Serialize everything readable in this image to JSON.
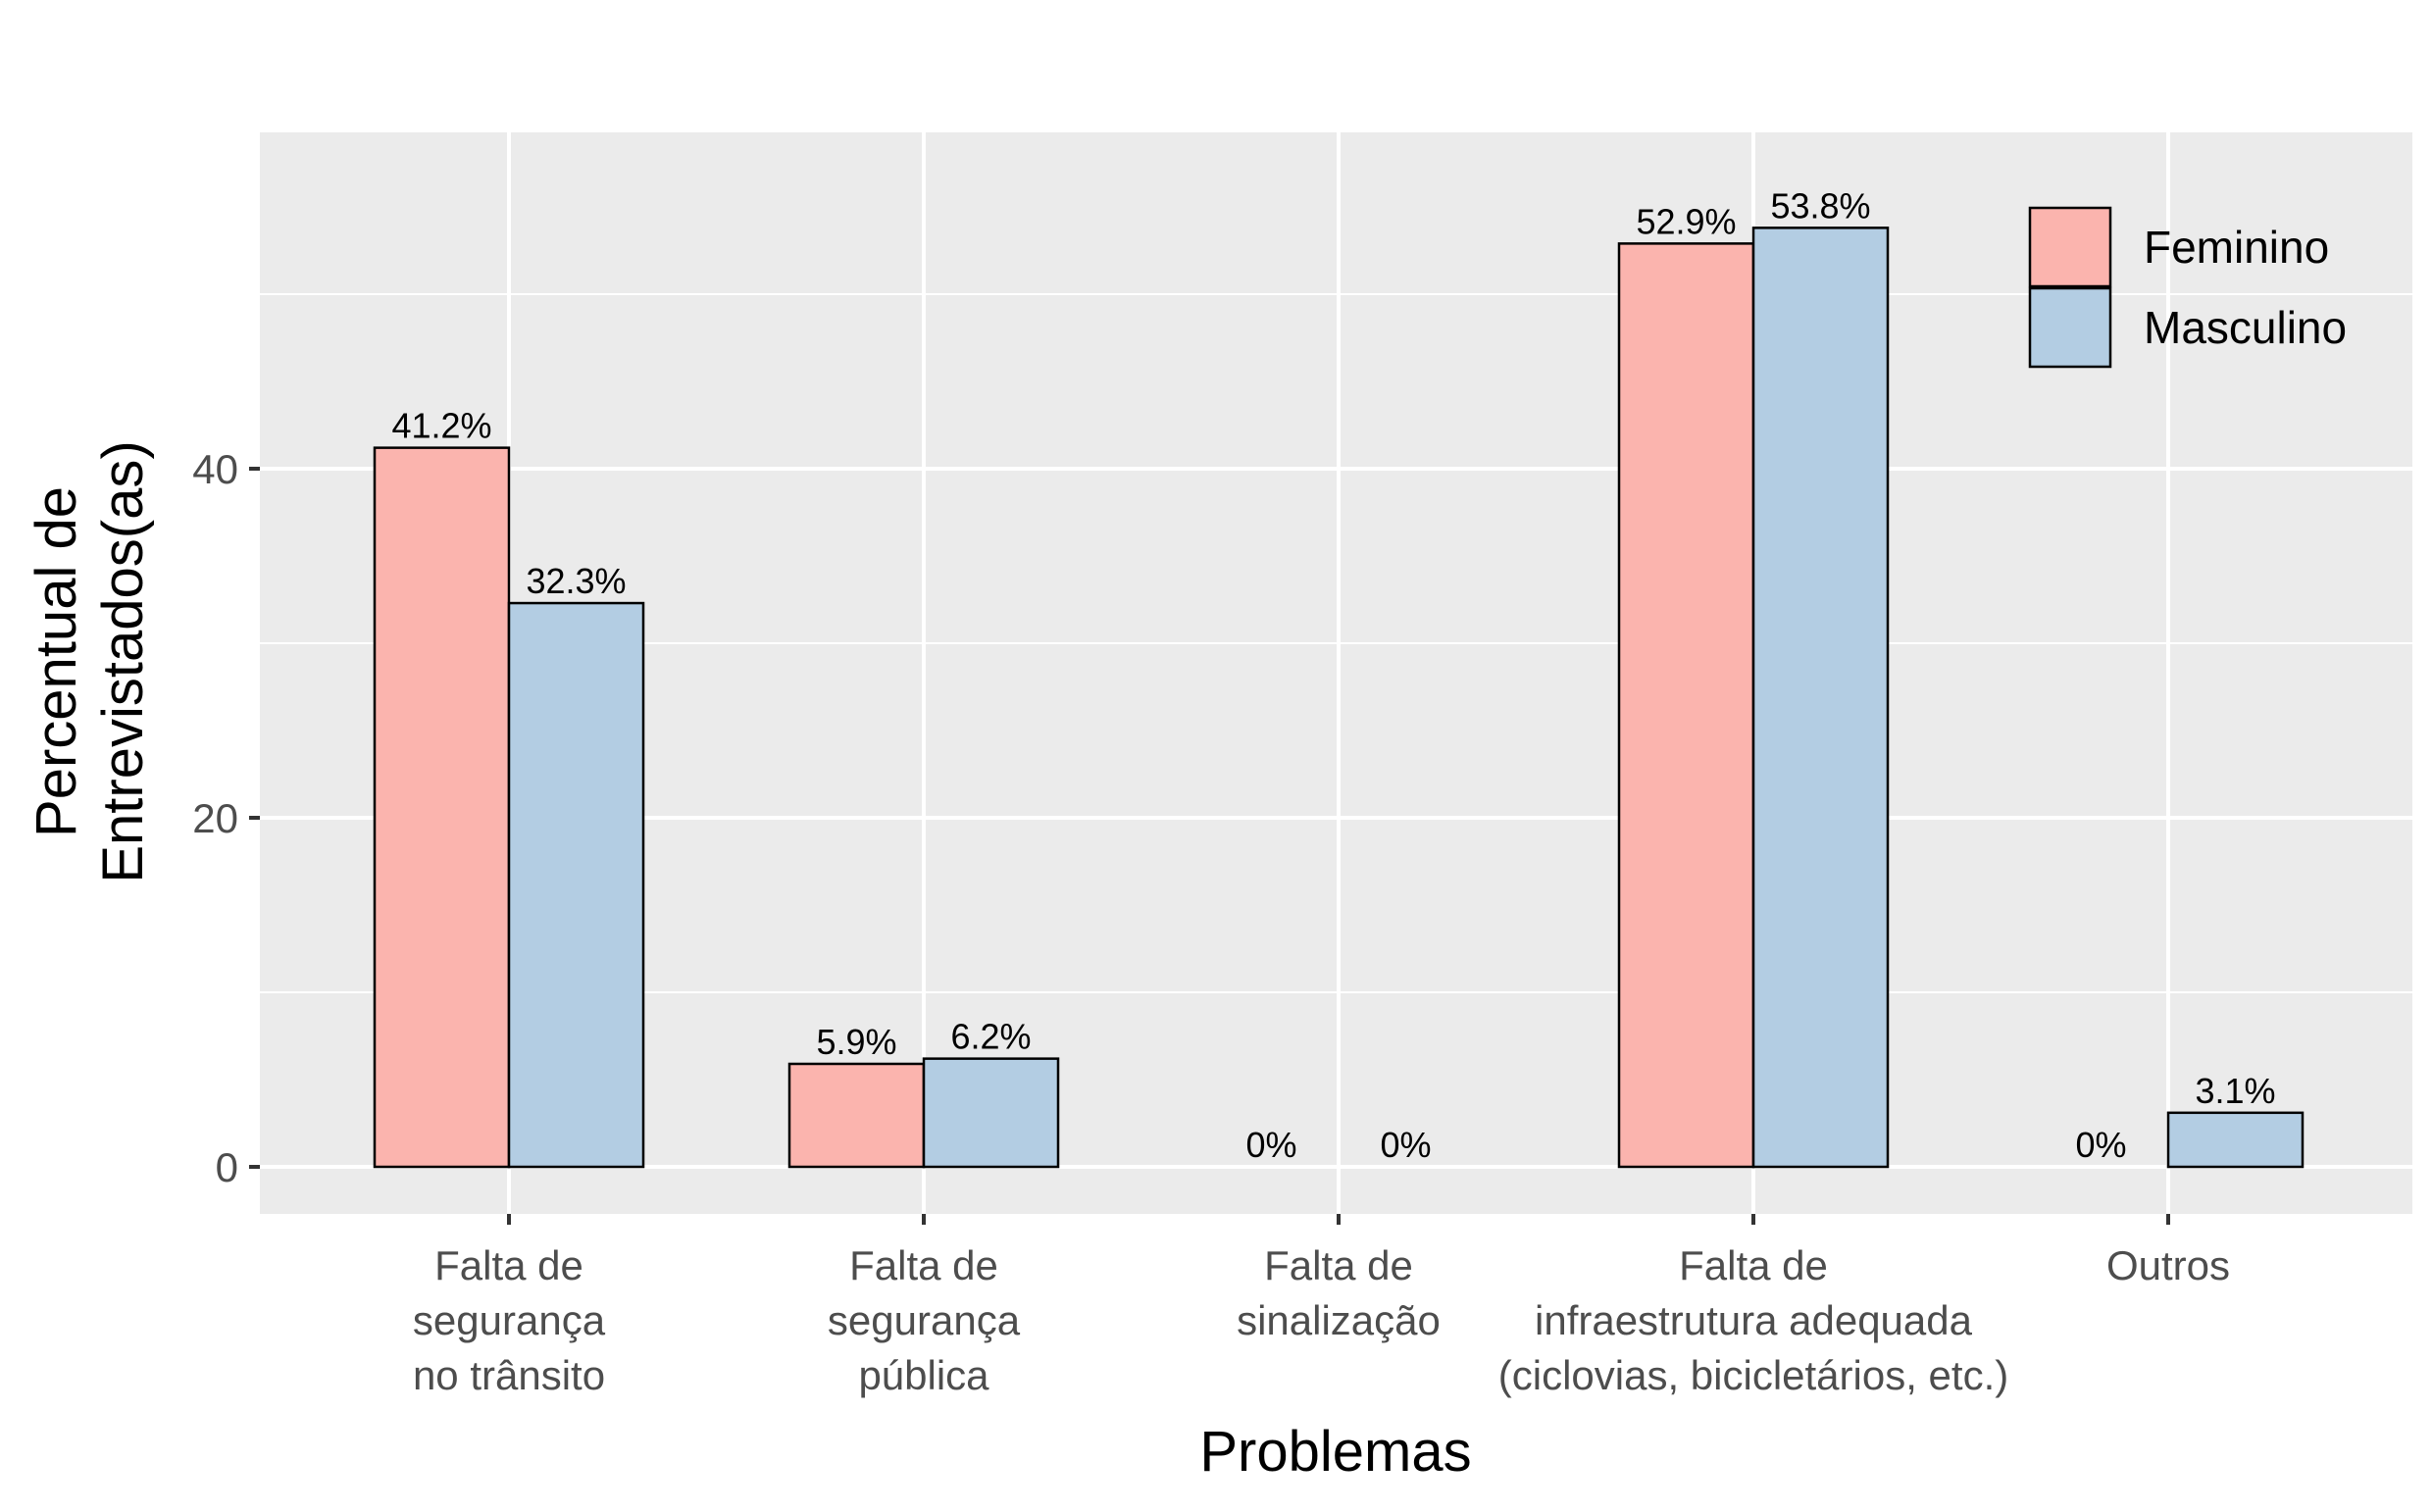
{
  "chart_data": {
    "type": "bar",
    "title": "",
    "xlabel": "Problemas",
    "ylabel_lines": [
      "Percentual de",
      "Entrevistados(as)"
    ],
    "categories": [
      [
        "Falta de",
        "segurança",
        "no trânsito"
      ],
      [
        "Falta de",
        "segurança",
        "pública"
      ],
      [
        "Falta de",
        "sinalização"
      ],
      [
        "Falta de",
        "infraestrutura adequada",
        "(ciclovias, bicicletários, etc.)"
      ],
      [
        "Outros"
      ]
    ],
    "series": [
      {
        "name": "Feminino",
        "color": "#fbb4ae",
        "values": [
          41.2,
          5.9,
          0,
          52.9,
          0
        ],
        "labels": [
          "41.2%",
          "5.9%",
          "0%",
          "52.9%",
          "0%"
        ]
      },
      {
        "name": "Masculino",
        "color": "#b3cde3",
        "values": [
          32.3,
          6.2,
          0,
          53.8,
          3.1
        ],
        "labels": [
          "32.3%",
          "6.2%",
          "0%",
          "53.8%",
          "3.1%"
        ]
      }
    ],
    "yticks": [
      0,
      20,
      40
    ],
    "ytick_labels": [
      "0",
      "20",
      "40"
    ],
    "ylim": [
      -2.9,
      59.5
    ],
    "grid": true,
    "legend_position": "top-right",
    "panel_background": "#ebebeb",
    "grid_color": "#ffffff"
  }
}
